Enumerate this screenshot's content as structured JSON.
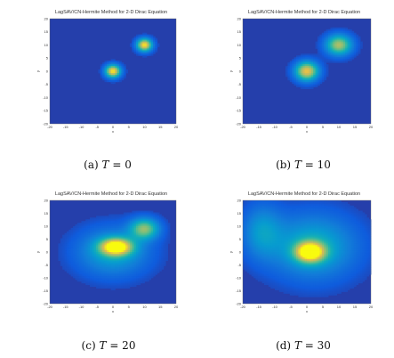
{
  "figure": {
    "panels": [
      {
        "title": "LagSAV/CN-Hermite Method for 2-D Dirac Equation",
        "caption_label": "(a)",
        "caption_var": "T",
        "caption_eq": "= 0",
        "xlabel": "x",
        "ylabel": "y",
        "xticks": [
          "-20",
          "-15",
          "-10",
          "-5",
          "0",
          "5",
          "10",
          "15",
          "20"
        ],
        "yticks": [
          "20",
          "15",
          "10",
          "5",
          "0",
          "-5",
          "-10",
          "-15",
          "-20"
        ],
        "colormap": "parula"
      },
      {
        "title": "LagSAV/CN-Hermite Method for 2-D Dirac Equation",
        "caption_label": "(b)",
        "caption_var": "T",
        "caption_eq": "= 10",
        "xlabel": "x",
        "ylabel": "y",
        "xticks": [
          "-20",
          "-15",
          "-10",
          "-5",
          "0",
          "5",
          "10",
          "15",
          "20"
        ],
        "yticks": [
          "20",
          "15",
          "10",
          "5",
          "0",
          "-5",
          "-10",
          "-15",
          "-20"
        ],
        "colormap": "parula"
      },
      {
        "title": "LagSAV/CN-Hermite Method for 2-D Dirac Equation",
        "caption_label": "(c)",
        "caption_var": "T",
        "caption_eq": "= 20",
        "xlabel": "x",
        "ylabel": "y",
        "xticks": [
          "-20",
          "-15",
          "-10",
          "-5",
          "0",
          "5",
          "10",
          "15",
          "20"
        ],
        "yticks": [
          "20",
          "15",
          "10",
          "5",
          "0",
          "-5",
          "-10",
          "-15",
          "-20"
        ],
        "colormap": "parula"
      },
      {
        "title": "LagSAV/CN-Hermite Method for 2-D Dirac Equation",
        "caption_label": "(d)",
        "caption_var": "T",
        "caption_eq": "= 30",
        "xlabel": "x",
        "ylabel": "y",
        "xticks": [
          "-20",
          "-15",
          "-10",
          "-5",
          "0",
          "5",
          "10",
          "15",
          "20"
        ],
        "yticks": [
          "20",
          "15",
          "10",
          "5",
          "0",
          "-5",
          "-10",
          "-15",
          "-20"
        ],
        "colormap": "parula"
      }
    ]
  },
  "chart_data": [
    {
      "type": "heatmap",
      "title": "LagSAV/CN-Hermite Method for 2-D Dirac Equation",
      "xlabel": "x",
      "ylabel": "y",
      "xlim": [
        -20,
        20
      ],
      "ylim": [
        -20,
        20
      ],
      "T": 0,
      "blobs": [
        {
          "cx": 0,
          "cy": 0,
          "rx": 2.4,
          "ry": 2.4,
          "peak": 0.92
        },
        {
          "cx": 10,
          "cy": 10,
          "rx": 2.4,
          "ry": 2.4,
          "peak": 0.92
        }
      ]
    },
    {
      "type": "heatmap",
      "title": "LagSAV/CN-Hermite Method for 2-D Dirac Equation",
      "xlabel": "x",
      "ylabel": "y",
      "xlim": [
        -20,
        20
      ],
      "ylim": [
        -20,
        20
      ],
      "T": 10,
      "blobs": [
        {
          "cx": 0,
          "cy": 0,
          "rx": 3.6,
          "ry": 3.6,
          "peak": 0.85
        },
        {
          "cx": 10,
          "cy": 10,
          "rx": 4.0,
          "ry": 3.8,
          "peak": 0.72
        }
      ]
    },
    {
      "type": "heatmap",
      "title": "LagSAV/CN-Hermite Method for 2-D Dirac Equation",
      "xlabel": "x",
      "ylabel": "y",
      "xlim": [
        -20,
        20
      ],
      "ylim": [
        -20,
        20
      ],
      "T": 20,
      "blobs": [
        {
          "cx": 1,
          "cy": 2,
          "rx": 5.0,
          "ry": 3.2,
          "peak": 0.88
        },
        {
          "cx": 10,
          "cy": 9,
          "rx": 4.5,
          "ry": 4.0,
          "peak": 0.62
        },
        {
          "cx": 0,
          "cy": 0,
          "rx": 11,
          "ry": 9,
          "peak": 0.38
        }
      ]
    },
    {
      "type": "heatmap",
      "title": "LagSAV/CN-Hermite Method for 2-D Dirac Equation",
      "xlabel": "x",
      "ylabel": "y",
      "xlim": [
        -20,
        20
      ],
      "ylim": [
        -20,
        20
      ],
      "T": 30,
      "blobs": [
        {
          "cx": 1,
          "cy": 0,
          "rx": 4.5,
          "ry": 3.8,
          "peak": 0.9
        },
        {
          "cx": 2,
          "cy": 2,
          "rx": 13,
          "ry": 12,
          "peak": 0.42
        },
        {
          "cx": -14,
          "cy": 8,
          "rx": 6,
          "ry": 10,
          "peak": 0.3
        }
      ]
    }
  ]
}
